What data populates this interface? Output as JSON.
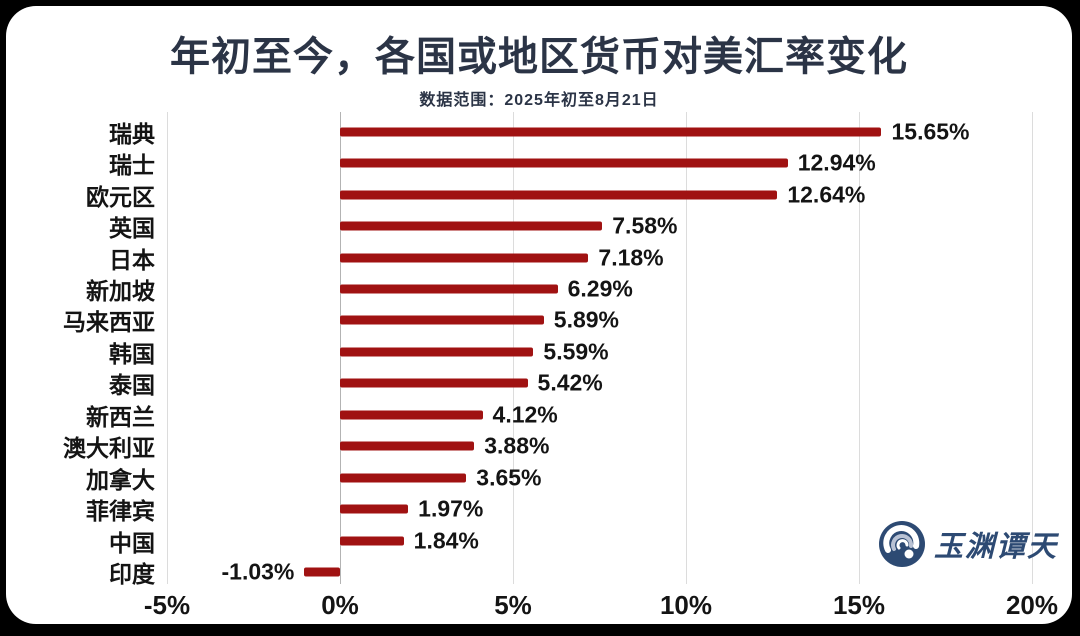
{
  "title": {
    "text": "年初至今，各国或地区货币对美汇率变化",
    "color": "#2b3446"
  },
  "subtitle": {
    "text": "数据范围：2025年初至8月21日",
    "color": "#2b3446"
  },
  "watermark": {
    "text": "玉渊谭天",
    "icon": "yuyuantantian-circle-swirl-logo",
    "color": "#2d4a73"
  },
  "colors": {
    "bar": "#a01212",
    "grid": "#dcdcdc",
    "zero_axis": "#b3b3b3",
    "label": "#141414",
    "tick": "#141414",
    "card_background": "#ffffff",
    "frame": "#000000"
  },
  "chart_data": {
    "type": "bar",
    "orientation": "horizontal",
    "title": "年初至今，各国或地区货币对美汇率变化",
    "subtitle": "数据范围：2025年初至8月21日",
    "categories": [
      "瑞典",
      "瑞士",
      "欧元区",
      "英国",
      "日本",
      "新加坡",
      "马来西亚",
      "韩国",
      "泰国",
      "新西兰",
      "澳大利亚",
      "加拿大",
      "菲律宾",
      "中国",
      "印度"
    ],
    "values": [
      15.65,
      12.94,
      12.64,
      7.58,
      7.18,
      6.29,
      5.89,
      5.59,
      5.42,
      4.12,
      3.88,
      3.65,
      1.97,
      1.84,
      -1.03
    ],
    "value_labels": [
      "15.65%",
      "12.94%",
      "12.64%",
      "7.58%",
      "7.18%",
      "6.29%",
      "5.89%",
      "5.59%",
      "5.42%",
      "4.12%",
      "3.88%",
      "3.65%",
      "1.97%",
      "1.84%",
      "-1.03%"
    ],
    "x_ticks": [
      -5,
      0,
      5,
      10,
      15,
      20
    ],
    "x_tick_labels": [
      "-5%",
      "0%",
      "5%",
      "10%",
      "15%",
      "20%"
    ],
    "xlim": [
      -5,
      20
    ],
    "grid": "vertical",
    "legend": false,
    "value_label_position": "outside-end"
  }
}
